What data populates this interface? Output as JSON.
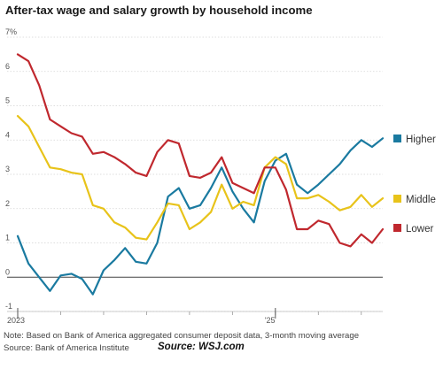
{
  "chart_data": {
    "type": "line",
    "title": "After-tax wage and salary growth by household income",
    "y_unit_label": "7%",
    "y_ticks": [
      "7%",
      "6",
      "5",
      "4",
      "3",
      "2",
      "1",
      "0",
      "-1"
    ],
    "ylim": [
      -1,
      7
    ],
    "x_tick_labels": [
      {
        "x": 0,
        "label": "2023"
      },
      {
        "x": 24,
        "label": "'25"
      }
    ],
    "xlim": [
      0,
      34
    ],
    "grid": true,
    "legend_placement": "right",
    "series": [
      {
        "name": "Higher",
        "color": "#1a7aa0",
        "values": [
          1.2,
          0.4,
          0.0,
          -0.4,
          0.05,
          0.1,
          -0.05,
          -0.5,
          0.2,
          0.5,
          0.85,
          0.45,
          0.4,
          1.0,
          2.35,
          2.6,
          2.0,
          2.1,
          2.6,
          3.2,
          2.5,
          2.0,
          1.6,
          2.8,
          3.4,
          3.6,
          2.7,
          2.45,
          2.7,
          3.0,
          3.3,
          3.7,
          4.0,
          3.8,
          4.05
        ]
      },
      {
        "name": "Middle",
        "color": "#e8c31a",
        "values": [
          4.7,
          4.4,
          3.8,
          3.2,
          3.15,
          3.05,
          3.0,
          2.1,
          2.0,
          1.6,
          1.45,
          1.15,
          1.1,
          1.6,
          2.15,
          2.1,
          1.4,
          1.6,
          1.9,
          2.7,
          2.0,
          2.2,
          2.1,
          3.2,
          3.5,
          3.3,
          2.3,
          2.3,
          2.4,
          2.2,
          1.95,
          2.05,
          2.4,
          2.05,
          2.3
        ]
      },
      {
        "name": "Lower",
        "color": "#c0282e",
        "values": [
          6.5,
          6.3,
          5.6,
          4.6,
          4.4,
          4.2,
          4.1,
          3.6,
          3.65,
          3.5,
          3.3,
          3.05,
          2.95,
          3.65,
          4.0,
          3.9,
          2.95,
          2.9,
          3.05,
          3.5,
          2.75,
          2.6,
          2.45,
          3.2,
          3.2,
          2.55,
          1.4,
          1.4,
          1.65,
          1.55,
          1.0,
          0.9,
          1.25,
          1.0,
          1.4
        ]
      }
    ]
  },
  "note": "Note: Based on Bank of America aggregated consumer deposit data, 3-month moving average",
  "source": "Source: Bank of America Institute",
  "credit": "Source: WSJ.com"
}
